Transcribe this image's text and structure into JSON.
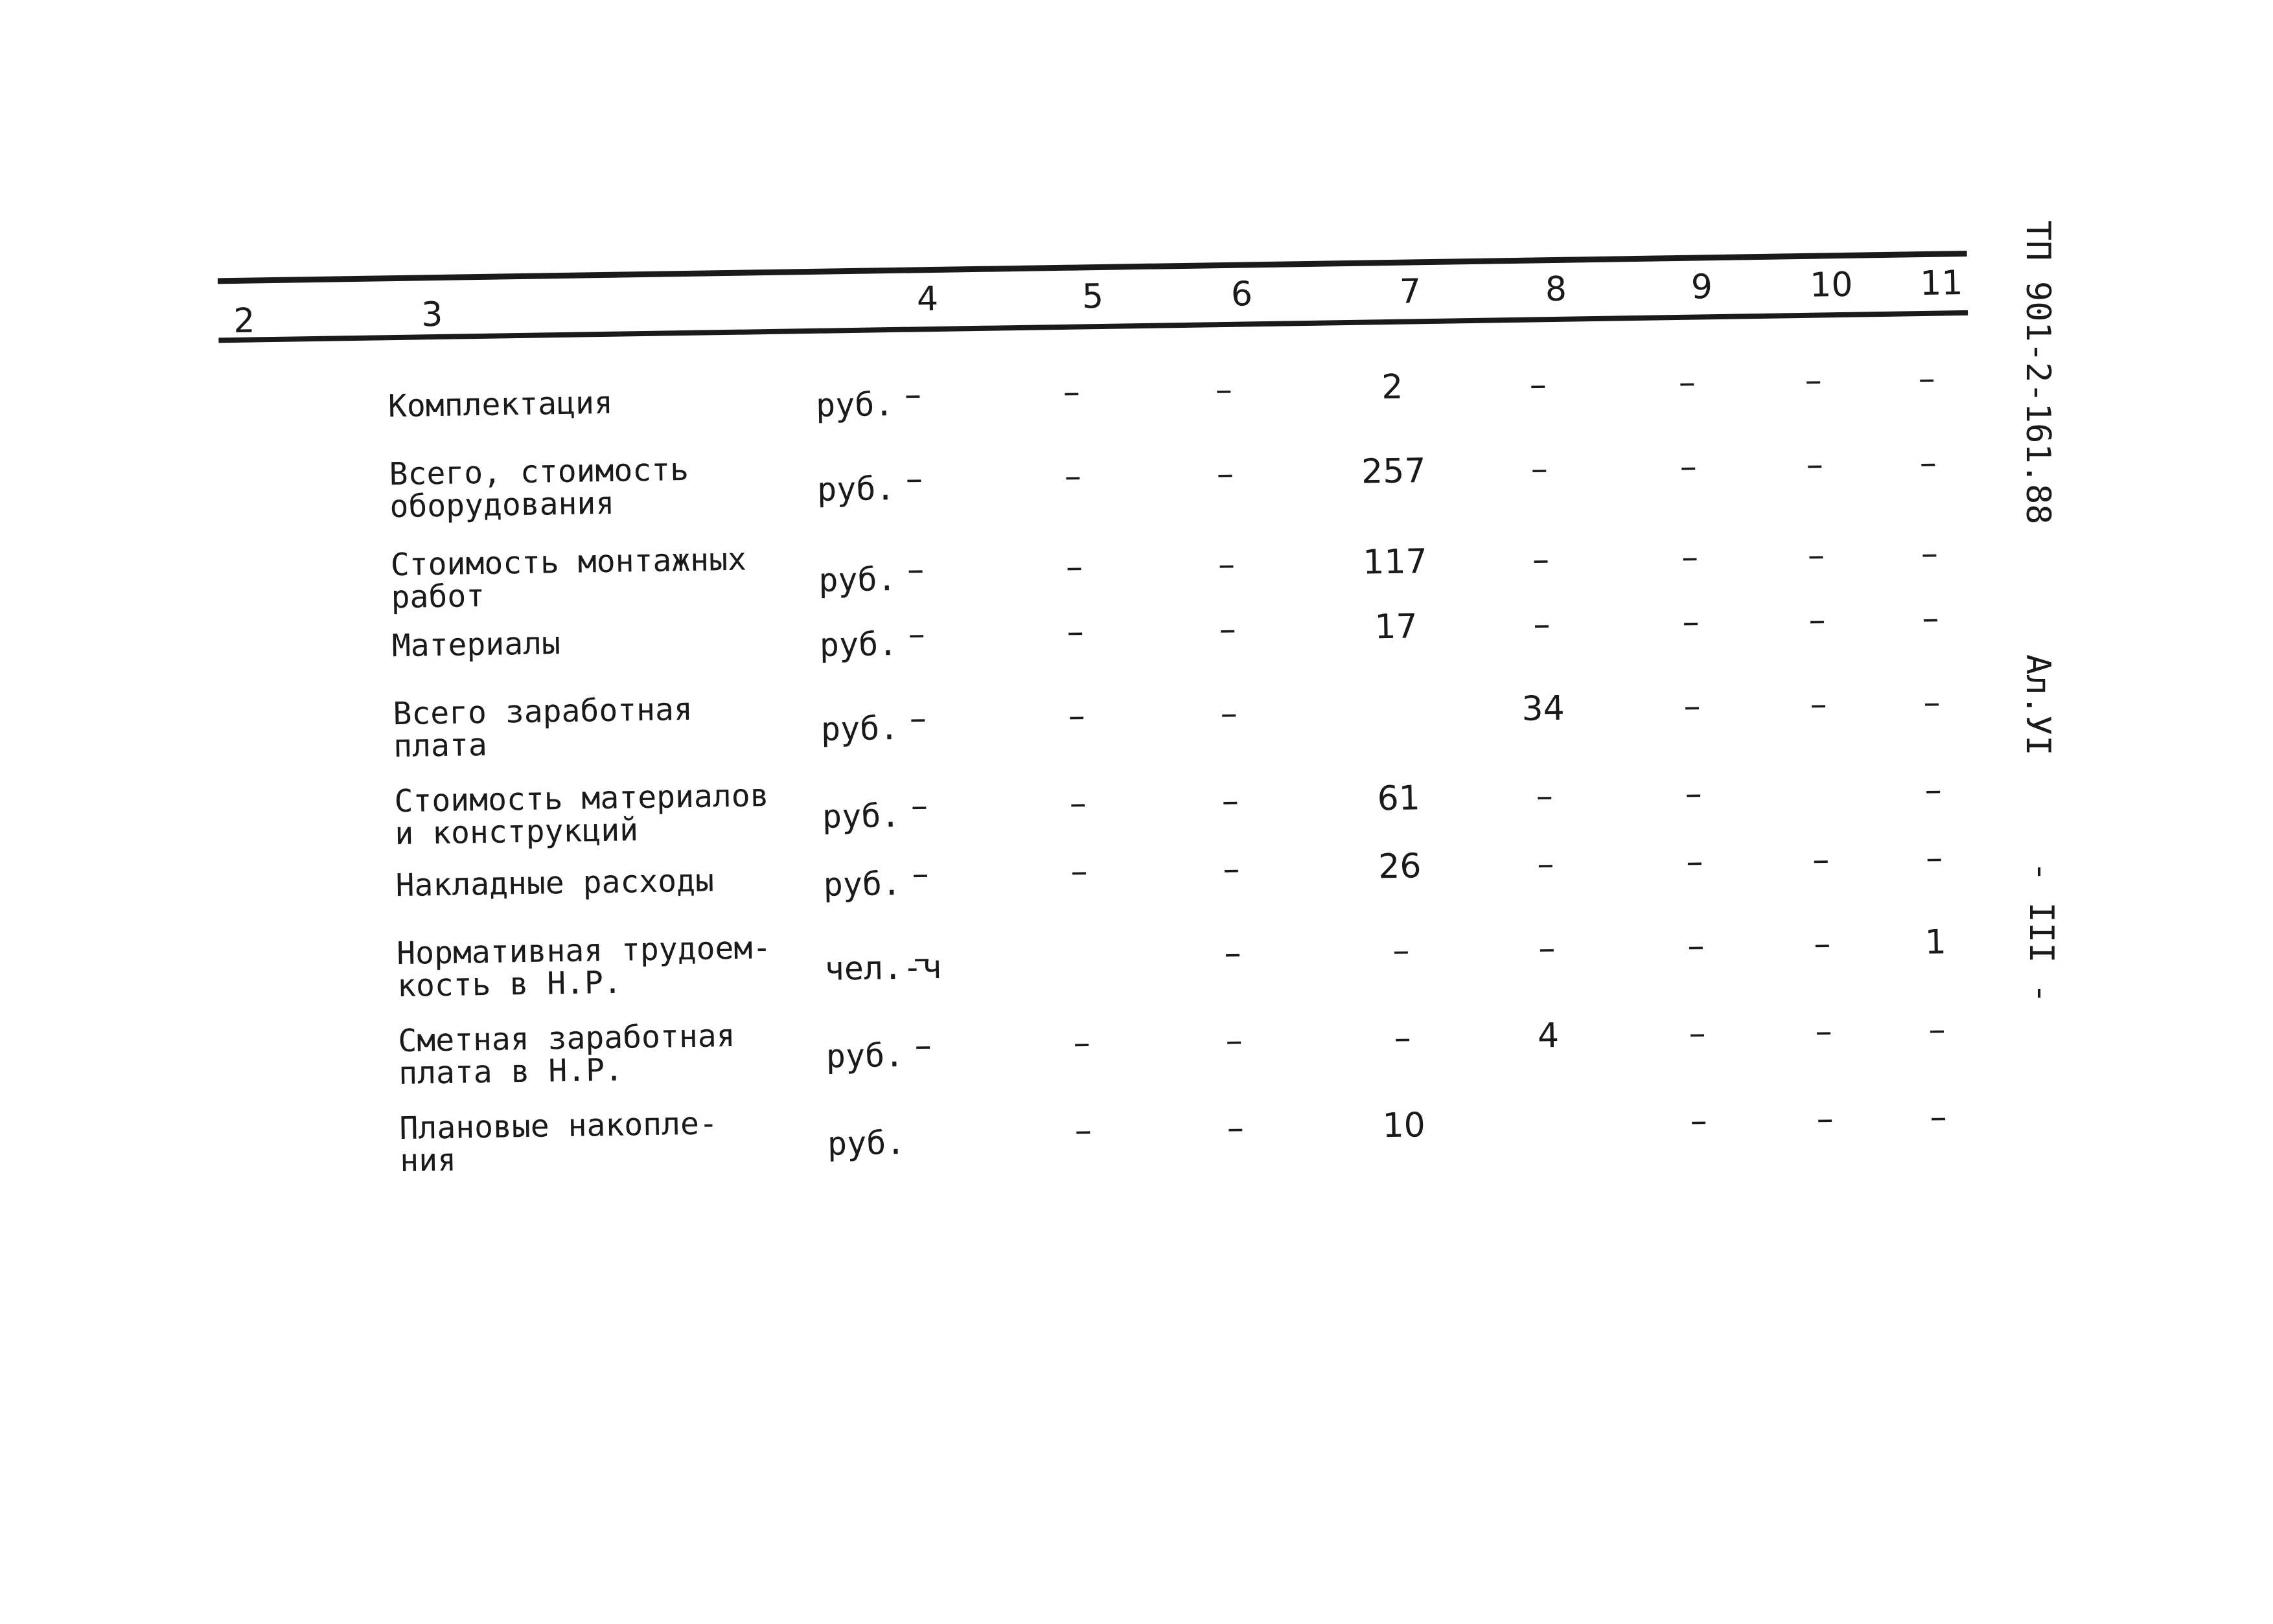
{
  "side_labels": {
    "document_code": "ТП 901-2-161.88",
    "album": "Ал.УI",
    "page": "- III -"
  },
  "table": {
    "column_numbers": [
      "2",
      "3",
      "4",
      "5",
      "6",
      "7",
      "8",
      "9",
      "10",
      "11"
    ],
    "rows": [
      {
        "name": "Комплектация",
        "unit": "руб.",
        "cells": [
          "–",
          "–",
          "–",
          "2",
          "–",
          "–",
          "–",
          "–"
        ]
      },
      {
        "name": "Всего, стоимость\nоборудования",
        "unit": "руб.",
        "cells": [
          "–",
          "–",
          "–",
          "257",
          "–",
          "–",
          "–",
          "–"
        ]
      },
      {
        "name": "Стоимость монтажных\nработ",
        "unit": "руб.",
        "cells": [
          "–",
          "–",
          "–",
          "117",
          "–",
          "–",
          "–",
          "–"
        ]
      },
      {
        "name": "Материалы",
        "unit": "руб.",
        "cells": [
          "–",
          "–",
          "–",
          "17",
          "–",
          "–",
          "–",
          "–"
        ]
      },
      {
        "name": "Всего заработная\nплата",
        "unit": "руб.",
        "cells": [
          "–",
          "–",
          "–",
          "",
          "34",
          "–",
          "–",
          "–"
        ]
      },
      {
        "name": "Стоимость материалов\nи конструкций",
        "unit": "руб.",
        "cells": [
          "–",
          "–",
          "–",
          "61",
          "–",
          "–",
          "",
          "–"
        ]
      },
      {
        "name": "Накладные расходы",
        "unit": "руб.",
        "cells": [
          "–",
          "–",
          "–",
          "26",
          "–",
          "–",
          "–",
          "–"
        ]
      },
      {
        "name": "Нормативная трудоем-\nкость в Н.Р.",
        "unit": "чел.-ч",
        "cells": [
          "–",
          "",
          "–",
          "–",
          "–",
          "–",
          "–",
          "1"
        ]
      },
      {
        "name": "Сметная заработная\nплата в Н.Р.",
        "unit": "руб.",
        "cells": [
          "–",
          "–",
          "–",
          "–",
          "4",
          "–",
          "–",
          "–"
        ]
      },
      {
        "name": "Плановые накопле-\nния",
        "unit": "руб.",
        "cells": [
          "",
          "–",
          "–",
          "10",
          "",
          "–",
          "–",
          "–"
        ]
      }
    ]
  }
}
